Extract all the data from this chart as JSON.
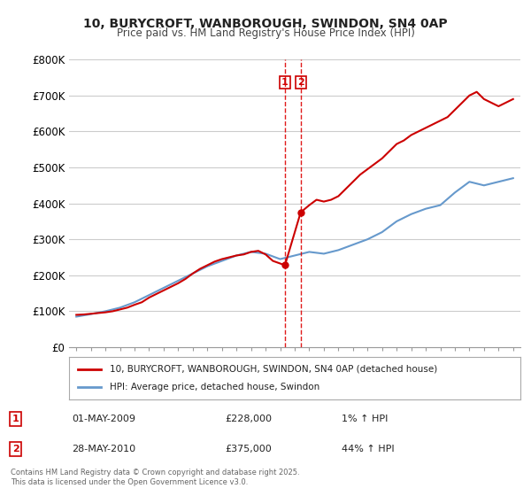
{
  "title_line1": "10, BURYCROFT, WANBOROUGH, SWINDON, SN4 0AP",
  "title_line2": "Price paid vs. HM Land Registry's House Price Index (HPI)",
  "xlabel": "",
  "ylabel": "",
  "ylim": [
    0,
    800000
  ],
  "xlim": [
    1995,
    2025.5
  ],
  "yticks": [
    0,
    100000,
    200000,
    300000,
    400000,
    500000,
    600000,
    700000,
    800000
  ],
  "ytick_labels": [
    "£0",
    "£100K",
    "£200K",
    "£300K",
    "£400K",
    "£500K",
    "£600K",
    "£700K",
    "£800K"
  ],
  "xticks": [
    1995,
    1996,
    1997,
    1998,
    1999,
    2000,
    2001,
    2002,
    2003,
    2004,
    2005,
    2006,
    2007,
    2008,
    2009,
    2010,
    2011,
    2012,
    2013,
    2014,
    2015,
    2016,
    2017,
    2018,
    2019,
    2020,
    2021,
    2022,
    2023,
    2024,
    2025
  ],
  "background_color": "#ffffff",
  "grid_color": "#cccccc",
  "red_line_color": "#cc0000",
  "blue_line_color": "#6699cc",
  "vline_color": "#dd0000",
  "sale1_x": 2009.33,
  "sale2_x": 2010.41,
  "sale1_price": 228000,
  "sale2_price": 375000,
  "legend_label_red": "10, BURYCROFT, WANBOROUGH, SWINDON, SN4 0AP (detached house)",
  "legend_label_blue": "HPI: Average price, detached house, Swindon",
  "table_entries": [
    {
      "num": "1",
      "date": "01-MAY-2009",
      "price": "£228,000",
      "hpi": "1% ↑ HPI"
    },
    {
      "num": "2",
      "date": "28-MAY-2010",
      "price": "£375,000",
      "hpi": "44% ↑ HPI"
    }
  ],
  "footer_text": "Contains HM Land Registry data © Crown copyright and database right 2025.\nThis data is licensed under the Open Government Licence v3.0.",
  "hpi_data_x": [
    1995,
    1996,
    1997,
    1998,
    1999,
    2000,
    2001,
    2002,
    2003,
    2004,
    2005,
    2006,
    2007,
    2008,
    2009,
    2010,
    2011,
    2012,
    2013,
    2014,
    2015,
    2016,
    2017,
    2018,
    2019,
    2020,
    2021,
    2022,
    2023,
    2024,
    2025
  ],
  "hpi_data_y": [
    85000,
    92000,
    100000,
    110000,
    125000,
    145000,
    165000,
    185000,
    205000,
    225000,
    240000,
    255000,
    265000,
    260000,
    245000,
    255000,
    265000,
    260000,
    270000,
    285000,
    300000,
    320000,
    350000,
    370000,
    385000,
    395000,
    430000,
    460000,
    450000,
    460000,
    470000
  ],
  "property_data_x": [
    1995,
    1995.5,
    1996,
    1996.5,
    1997,
    1997.5,
    1998,
    1998.5,
    1999,
    1999.5,
    2000,
    2000.5,
    2001,
    2001.5,
    2002,
    2002.5,
    2003,
    2003.5,
    2004,
    2004.5,
    2005,
    2005.5,
    2006,
    2006.5,
    2007,
    2007.5,
    2008,
    2008.5,
    2009.33,
    2010.41,
    2011,
    2011.5,
    2012,
    2012.5,
    2013,
    2013.5,
    2014,
    2014.5,
    2015,
    2015.5,
    2016,
    2016.5,
    2017,
    2017.5,
    2018,
    2018.5,
    2019,
    2019.5,
    2020,
    2020.5,
    2021,
    2021.5,
    2022,
    2022.5,
    2023,
    2023.5,
    2024,
    2024.5,
    2025
  ],
  "property_data_y": [
    90000,
    91000,
    93000,
    95000,
    97000,
    100000,
    105000,
    110000,
    118000,
    125000,
    138000,
    148000,
    158000,
    168000,
    178000,
    190000,
    205000,
    218000,
    228000,
    238000,
    245000,
    250000,
    255000,
    258000,
    265000,
    268000,
    258000,
    240000,
    228000,
    375000,
    395000,
    410000,
    405000,
    410000,
    420000,
    440000,
    460000,
    480000,
    495000,
    510000,
    525000,
    545000,
    565000,
    575000,
    590000,
    600000,
    610000,
    620000,
    630000,
    640000,
    660000,
    680000,
    700000,
    710000,
    690000,
    680000,
    670000,
    680000,
    690000
  ]
}
